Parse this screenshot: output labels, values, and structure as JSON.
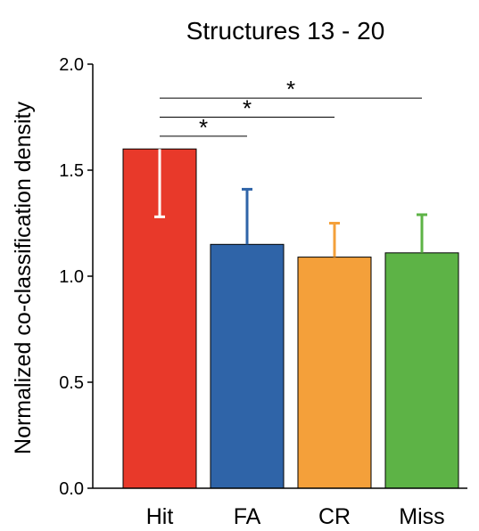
{
  "chart_data": {
    "type": "bar",
    "title": "Structures 13 - 20",
    "xlabel": "",
    "ylabel": "Normalized co-classification density",
    "ylim": [
      0,
      2.0
    ],
    "yticks": [
      0.0,
      0.5,
      1.0,
      1.5,
      2.0
    ],
    "ytick_labels": [
      "0.0",
      "0.5",
      "1.0",
      "1.5",
      "2.0"
    ],
    "categories": [
      "Hit",
      "FA",
      "CR",
      "Miss"
    ],
    "values": [
      1.6,
      1.15,
      1.09,
      1.11
    ],
    "error": [
      0.32,
      0.26,
      0.16,
      0.18
    ],
    "colors": [
      "#e8392a",
      "#2f64a8",
      "#f4a03a",
      "#5db346"
    ],
    "error_colors": [
      "#ffffff",
      "#2f64a8",
      "#f4a03a",
      "#5db346"
    ],
    "error_direction": [
      "down",
      "up",
      "up",
      "up"
    ],
    "significance": [
      {
        "from": "Hit",
        "to": "FA",
        "level": 1.66,
        "label": "*"
      },
      {
        "from": "Hit",
        "to": "CR",
        "level": 1.75,
        "label": "*"
      },
      {
        "from": "Hit",
        "to": "Miss",
        "level": 1.84,
        "label": "*"
      }
    ],
    "grid": false,
    "legend": "none"
  }
}
